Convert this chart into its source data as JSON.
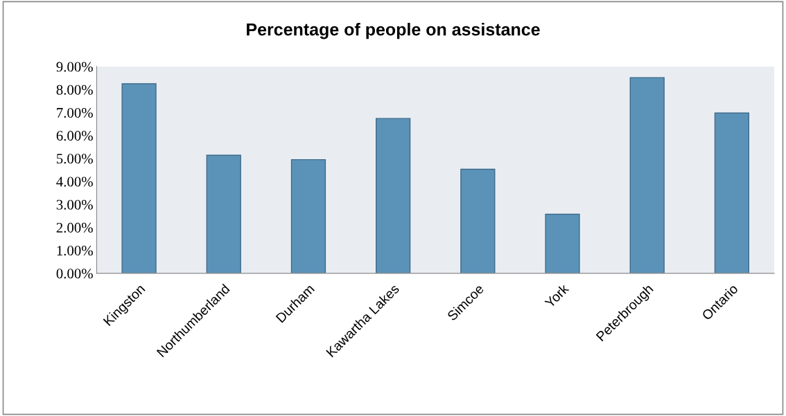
{
  "chart_data": {
    "type": "bar",
    "title": "Percentage of people on assistance",
    "categories": [
      "Kingston",
      "Northumberland",
      "Durham",
      "Kawartha Lakes",
      "Simcoe",
      "York",
      "Peterbrough",
      "Ontario"
    ],
    "values": [
      8.25,
      5.14,
      4.95,
      6.74,
      4.53,
      2.57,
      8.52,
      6.98
    ],
    "color": "#5b93b8",
    "ylim": [
      0,
      9
    ],
    "yticks": [
      {
        "value": 0,
        "label": "0.00%"
      },
      {
        "value": 1,
        "label": "1.00%"
      },
      {
        "value": 2,
        "label": "2.00%"
      },
      {
        "value": 3,
        "label": "3.00%"
      },
      {
        "value": 4,
        "label": "4.00%"
      },
      {
        "value": 5,
        "label": "5.00%"
      },
      {
        "value": 6,
        "label": "6.00%"
      },
      {
        "value": 7,
        "label": "7.00%"
      },
      {
        "value": 8,
        "label": "8.00%"
      },
      {
        "value": 9,
        "label": "9.00%"
      }
    ],
    "grid": false
  }
}
